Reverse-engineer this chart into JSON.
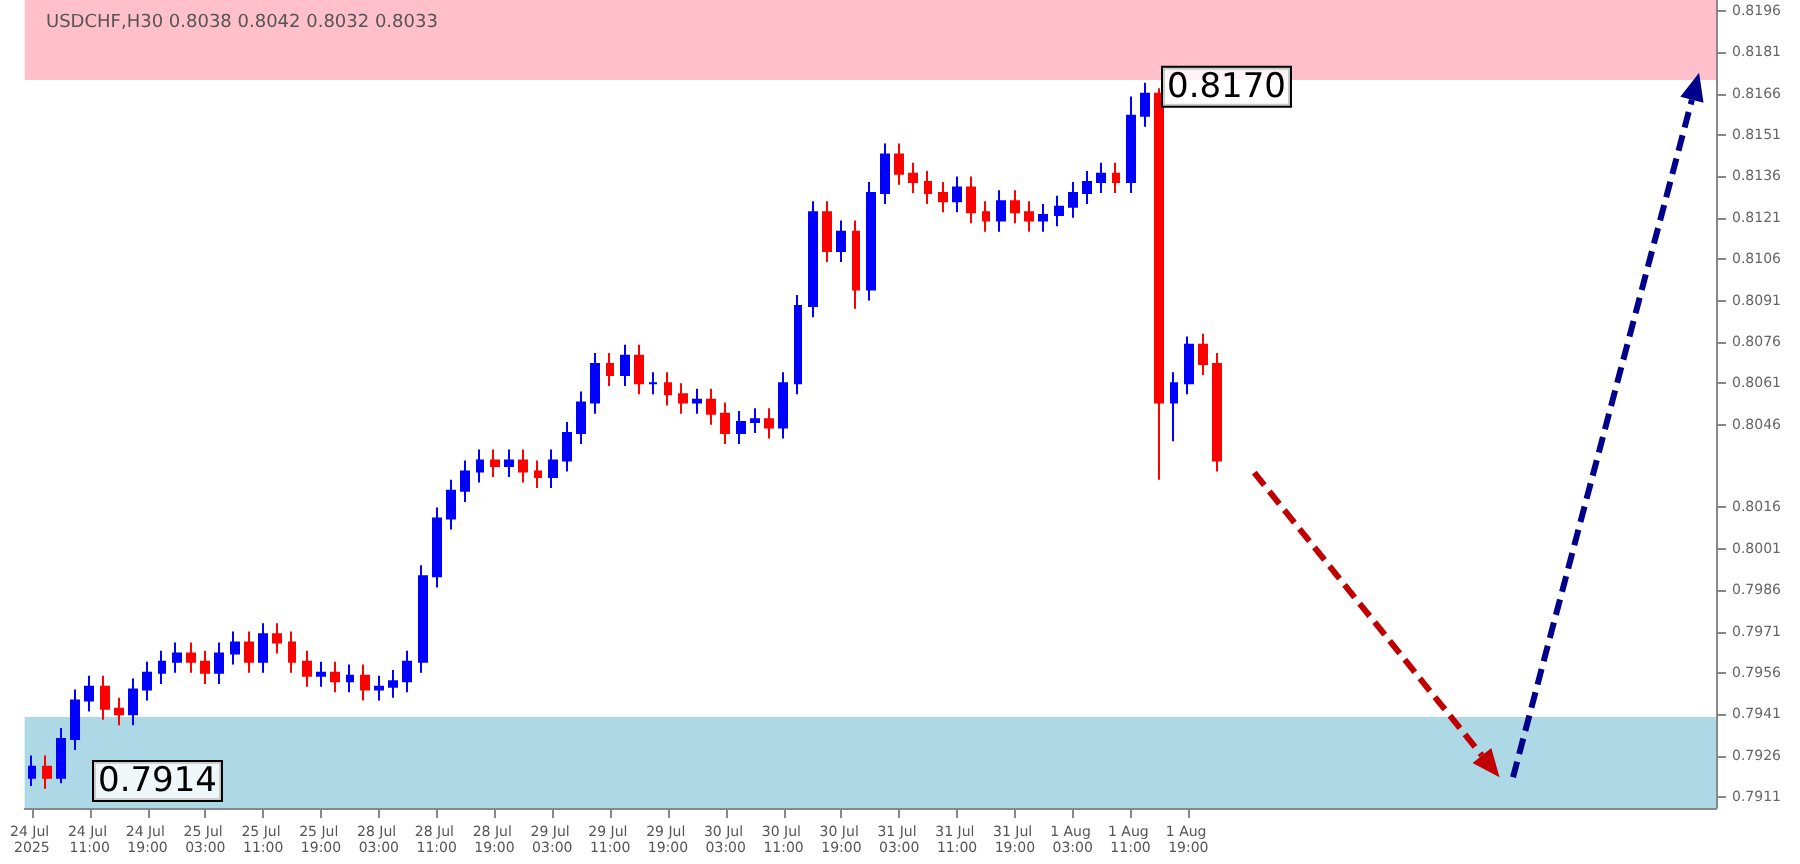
{
  "chart_data": {
    "type": "candlestick",
    "title": "USDCHF,H30 0.8038 0.8042 0.8032 0.8033",
    "categories": [
      "24 Jul 2025",
      null,
      null,
      null,
      "24 Jul 11:00",
      null,
      null,
      null,
      "24 Jul 19:00",
      null,
      null,
      null,
      "25 Jul 03:00",
      null,
      null,
      null,
      "25 Jul 11:00",
      null,
      null,
      null,
      "25 Jul 19:00",
      null,
      null,
      null,
      "28 Jul 03:00",
      null,
      null,
      null,
      "28 Jul 11:00",
      null,
      null,
      null,
      "28 Jul 19:00",
      null,
      null,
      null,
      "29 Jul 03:00",
      null,
      null,
      null,
      "29 Jul 11:00",
      null,
      null,
      null,
      "29 Jul 19:00",
      null,
      null,
      null,
      "30 Jul 03:00",
      null,
      null,
      null,
      "30 Jul 11:00",
      null,
      null,
      null,
      "30 Jul 19:00",
      null,
      null,
      null,
      "31 Jul 03:00",
      null,
      null,
      null,
      "31 Jul 11:00",
      null,
      null,
      null,
      "31 Jul 19:00",
      null,
      null,
      null,
      "1 Aug 03:00",
      null,
      null,
      null,
      "1 Aug 11:00",
      null,
      null,
      null,
      "1 Aug 19:00",
      null,
      null,
      null,
      null,
      null,
      null,
      null,
      null,
      null,
      null,
      null,
      null,
      null,
      null,
      null,
      null,
      null,
      null,
      null,
      null,
      null,
      null,
      null,
      null,
      null,
      null,
      null,
      null,
      null,
      null,
      null,
      null,
      null,
      null,
      null,
      null
    ],
    "ohlc": [
      [
        0.7918,
        0.7926,
        0.7915,
        0.7922
      ],
      [
        0.7922,
        0.7926,
        0.7914,
        0.7918
      ],
      [
        0.7918,
        0.7936,
        0.7916,
        0.7932
      ],
      [
        0.7932,
        0.795,
        0.7928,
        0.7946
      ],
      [
        0.7946,
        0.7955,
        0.7942,
        0.7951
      ],
      [
        0.7951,
        0.7955,
        0.7939,
        0.7943
      ],
      [
        0.7943,
        0.7947,
        0.7937,
        0.7941
      ],
      [
        0.7941,
        0.7954,
        0.7937,
        0.795
      ],
      [
        0.795,
        0.796,
        0.7946,
        0.7956
      ],
      [
        0.7956,
        0.7964,
        0.7952,
        0.796
      ],
      [
        0.796,
        0.7967,
        0.7956,
        0.7963
      ],
      [
        0.7963,
        0.7967,
        0.7956,
        0.796
      ],
      [
        0.796,
        0.7964,
        0.7952,
        0.7956
      ],
      [
        0.7956,
        0.7967,
        0.7952,
        0.7963
      ],
      [
        0.7963,
        0.7971,
        0.7959,
        0.7967
      ],
      [
        0.7967,
        0.7971,
        0.7956,
        0.796
      ],
      [
        0.796,
        0.7974,
        0.7956,
        0.797
      ],
      [
        0.797,
        0.7974,
        0.7963,
        0.7967
      ],
      [
        0.7967,
        0.7971,
        0.7956,
        0.796
      ],
      [
        0.796,
        0.7964,
        0.7951,
        0.7955
      ],
      [
        0.7955,
        0.796,
        0.7951,
        0.7956
      ],
      [
        0.7956,
        0.796,
        0.7949,
        0.7953
      ],
      [
        0.7953,
        0.7959,
        0.7949,
        0.7955
      ],
      [
        0.7955,
        0.7959,
        0.7946,
        0.795
      ],
      [
        0.795,
        0.7955,
        0.7946,
        0.7951
      ],
      [
        0.7951,
        0.7957,
        0.7947,
        0.7953
      ],
      [
        0.7953,
        0.7964,
        0.7949,
        0.796
      ],
      [
        0.796,
        0.7995,
        0.7956,
        0.7991
      ],
      [
        0.7991,
        0.8016,
        0.7987,
        0.8012
      ],
      [
        0.8012,
        0.8026,
        0.8008,
        0.8022
      ],
      [
        0.8022,
        0.8033,
        0.8018,
        0.8029
      ],
      [
        0.8029,
        0.8037,
        0.8025,
        0.8033
      ],
      [
        0.8033,
        0.8037,
        0.8027,
        0.8031
      ],
      [
        0.8031,
        0.8037,
        0.8027,
        0.8033
      ],
      [
        0.8033,
        0.8037,
        0.8025,
        0.8029
      ],
      [
        0.8029,
        0.8033,
        0.8023,
        0.8027
      ],
      [
        0.8027,
        0.8037,
        0.8023,
        0.8033
      ],
      [
        0.8033,
        0.8047,
        0.8029,
        0.8043
      ],
      [
        0.8043,
        0.8058,
        0.8039,
        0.8054
      ],
      [
        0.8054,
        0.8072,
        0.805,
        0.8068
      ],
      [
        0.8068,
        0.8072,
        0.806,
        0.8064
      ],
      [
        0.8064,
        0.8075,
        0.806,
        0.8071
      ],
      [
        0.8071,
        0.8075,
        0.8057,
        0.8061
      ],
      [
        0.8061,
        0.8065,
        0.8057,
        0.8061
      ],
      [
        0.8061,
        0.8065,
        0.8053,
        0.8057
      ],
      [
        0.8057,
        0.8061,
        0.805,
        0.8054
      ],
      [
        0.8054,
        0.8059,
        0.805,
        0.8055
      ],
      [
        0.8055,
        0.8059,
        0.8046,
        0.805
      ],
      [
        0.805,
        0.8054,
        0.8039,
        0.8043
      ],
      [
        0.8043,
        0.8051,
        0.8039,
        0.8047
      ],
      [
        0.8047,
        0.8052,
        0.8043,
        0.8048
      ],
      [
        0.8048,
        0.8052,
        0.8041,
        0.8045
      ],
      [
        0.8045,
        0.8065,
        0.8041,
        0.8061
      ],
      [
        0.8061,
        0.8093,
        0.8057,
        0.8089
      ],
      [
        0.8089,
        0.8127,
        0.8085,
        0.8123
      ],
      [
        0.8123,
        0.8127,
        0.8105,
        0.8109
      ],
      [
        0.8109,
        0.812,
        0.8105,
        0.8116
      ],
      [
        0.8116,
        0.812,
        0.8088,
        0.8095
      ],
      [
        0.8095,
        0.8134,
        0.8091,
        0.813
      ],
      [
        0.813,
        0.8148,
        0.8126,
        0.8144
      ],
      [
        0.8144,
        0.8148,
        0.8133,
        0.8137
      ],
      [
        0.8137,
        0.8141,
        0.813,
        0.8134
      ],
      [
        0.8134,
        0.8138,
        0.8126,
        0.813
      ],
      [
        0.813,
        0.8134,
        0.8123,
        0.8127
      ],
      [
        0.8127,
        0.8136,
        0.8123,
        0.8132
      ],
      [
        0.8132,
        0.8136,
        0.8119,
        0.8123
      ],
      [
        0.8123,
        0.8127,
        0.8116,
        0.812
      ],
      [
        0.812,
        0.8131,
        0.8116,
        0.8127
      ],
      [
        0.8127,
        0.8131,
        0.8119,
        0.8123
      ],
      [
        0.8123,
        0.8127,
        0.8116,
        0.812
      ],
      [
        0.812,
        0.8126,
        0.8116,
        0.8122
      ],
      [
        0.8122,
        0.8129,
        0.8118,
        0.8125
      ],
      [
        0.8125,
        0.8134,
        0.8121,
        0.813
      ],
      [
        0.813,
        0.8138,
        0.8126,
        0.8134
      ],
      [
        0.8134,
        0.8141,
        0.813,
        0.8137
      ],
      [
        0.8137,
        0.8141,
        0.813,
        0.8134
      ],
      [
        0.8134,
        0.8165,
        0.813,
        0.8158
      ],
      [
        0.8158,
        0.817,
        0.8154,
        0.8166
      ],
      [
        0.8166,
        0.8168,
        0.8026,
        0.8054
      ],
      [
        0.8054,
        0.8065,
        0.804,
        0.8061
      ],
      [
        0.8061,
        0.8078,
        0.8057,
        0.8075
      ],
      [
        0.8075,
        0.8079,
        0.8064,
        0.8068
      ],
      [
        0.8068,
        0.8072,
        0.8029,
        0.8033
      ],
      null,
      null,
      null,
      null,
      null,
      null,
      null,
      null,
      null,
      null,
      null,
      null,
      null,
      null,
      null,
      null,
      null,
      null,
      null,
      null,
      null,
      null,
      null,
      null,
      null,
      null,
      null,
      null,
      null,
      null,
      null,
      null,
      null,
      null
    ],
    "colors": [
      "#0000ff",
      "#ff0000",
      "#0000ff",
      "#0000ff",
      "#0000ff",
      "#ff0000",
      "#ff0000",
      "#0000ff",
      "#0000ff",
      "#0000ff",
      "#0000ff",
      "#ff0000",
      "#ff0000",
      "#0000ff",
      "#0000ff",
      "#ff0000",
      "#0000ff",
      "#ff0000",
      "#ff0000",
      "#ff0000",
      "#0000ff",
      "#ff0000",
      "#0000ff",
      "#ff0000",
      "#0000ff",
      "#0000ff",
      "#0000ff",
      "#0000ff",
      "#0000ff",
      "#0000ff",
      "#0000ff",
      "#0000ff",
      "#ff0000",
      "#0000ff",
      "#ff0000",
      "#ff0000",
      "#0000ff",
      "#0000ff",
      "#0000ff",
      "#0000ff",
      "#ff0000",
      "#0000ff",
      "#ff0000",
      "#0000ff",
      "#ff0000",
      "#ff0000",
      "#0000ff",
      "#ff0000",
      "#ff0000",
      "#0000ff",
      "#0000ff",
      "#ff0000",
      "#0000ff",
      "#0000ff",
      "#0000ff",
      "#ff0000",
      "#0000ff",
      "#ff0000",
      "#0000ff",
      "#0000ff",
      "#ff0000",
      "#ff0000",
      "#ff0000",
      "#ff0000",
      "#0000ff",
      "#ff0000",
      "#ff0000",
      "#0000ff",
      "#ff0000",
      "#ff0000",
      "#0000ff",
      "#0000ff",
      "#0000ff",
      "#0000ff",
      "#0000ff",
      "#ff0000",
      "#0000ff",
      "#0000ff",
      "#ff0000",
      "#0000ff",
      "#0000ff",
      "#ff0000",
      "#ff0000",
      null,
      null,
      null,
      null,
      null,
      null,
      null,
      null,
      null,
      null,
      null,
      null,
      null,
      null,
      null,
      null,
      null,
      null,
      null,
      null,
      null,
      null,
      null,
      null,
      null,
      null,
      null,
      null,
      null,
      null,
      null,
      null,
      null,
      null
    ],
    "ylim": [
      0.7907,
      0.82
    ],
    "yticks": [
      0.7911,
      0.7926,
      0.7941,
      0.7956,
      0.7971,
      0.7986,
      0.8001,
      0.8016,
      0.8046,
      0.8061,
      0.8076,
      0.8091,
      0.8106,
      0.8121,
      0.8136,
      0.8151,
      0.8166,
      0.8181,
      0.8196
    ],
    "bands": [
      {
        "axis": "y",
        "from": 0.8171,
        "to": 0.82,
        "color": "#ffc0cb"
      },
      {
        "axis": "y",
        "from": 0.7907,
        "to": 0.794,
        "color": "#add8e6"
      }
    ],
    "annotations": [
      {
        "text": "0.8170",
        "y": 0.817
      },
      "0.7914"
    ],
    "grid": false
  }
}
